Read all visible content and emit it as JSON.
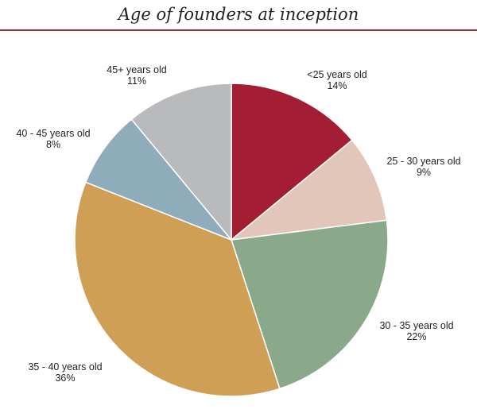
{
  "chart_data": {
    "type": "pie",
    "title": "Age of  founders at inception",
    "start_angle_deg": 0,
    "direction": "clockwise",
    "slices": [
      {
        "label": "<25 years old",
        "percent_label": "14%",
        "value": 14,
        "color": "#a31d33"
      },
      {
        "label": "25 - 30 years old",
        "percent_label": "9%",
        "value": 9,
        "color": "#e3c6ba"
      },
      {
        "label": "30 - 35 years old",
        "percent_label": "22%",
        "value": 22,
        "color": "#89a98a"
      },
      {
        "label": "35 - 40 years old",
        "percent_label": "36%",
        "value": 36,
        "color": "#cf9f56"
      },
      {
        "label": "40 - 45 years old",
        "percent_label": "8%",
        "value": 8,
        "color": "#8facbb"
      },
      {
        "label": "45+ years old",
        "percent_label": "11%",
        "value": 11,
        "color": "#b9babc"
      }
    ]
  },
  "theme": {
    "rule_color": "#9e2b3a"
  }
}
